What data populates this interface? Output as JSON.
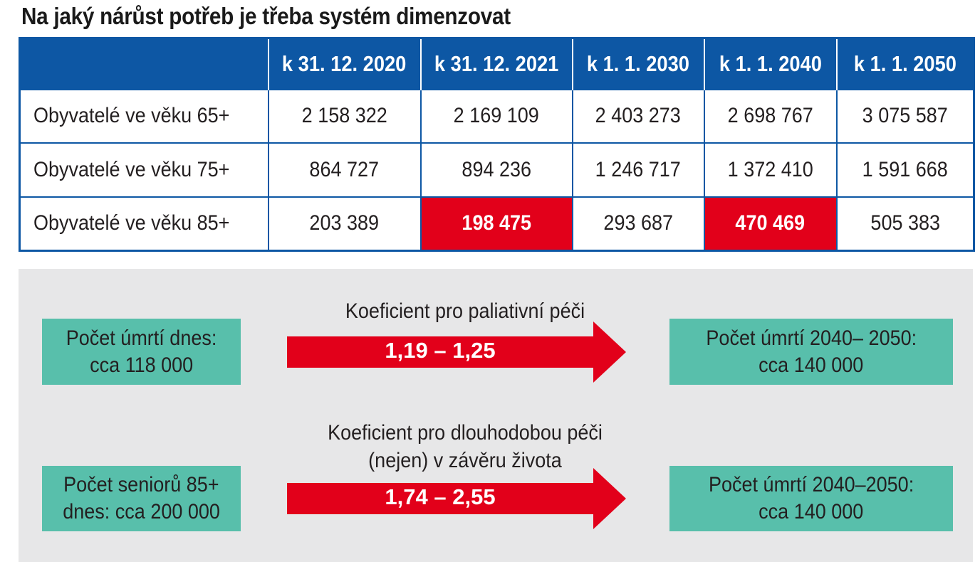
{
  "title": "Na jaký nárůst potřeb je třeba systém dimenzovat",
  "table": {
    "headers": [
      "",
      "k 31. 12. 2020",
      "k 31. 12. 2021",
      "k 1. 1. 2030",
      "k 1. 1. 2040",
      "k 1. 1. 2050"
    ],
    "rows": [
      {
        "label": "Obyvatelé ve věku 65+",
        "values": [
          "2 158 322",
          "2 169 109",
          "2 403 273",
          "2 698 767",
          "3 075 587"
        ]
      },
      {
        "label": "Obyvatelé ve věku 75+",
        "values": [
          "864 727",
          "894 236",
          "1 246 717",
          "1 372 410",
          "1 591 668"
        ]
      },
      {
        "label": "Obyvatelé ve věku 85+",
        "values": [
          "203 389",
          "198 475",
          "293 687",
          "470 469",
          "505 383"
        ]
      }
    ],
    "highlight_color": "#e2001a",
    "header_color": "#0d57a4"
  },
  "flow": {
    "row1": {
      "left_box": {
        "line1": "Počet úmrtí dnes:",
        "line2": "cca 118 000"
      },
      "coefficient_label": {
        "line1": "Koeficient pro paliativní péči"
      },
      "arrow_value": "1,19 – 1,25",
      "right_box": {
        "line1": "Počet úmrtí 2040– 2050:",
        "line2": "cca 140 000"
      }
    },
    "row2": {
      "left_box": {
        "line1": "Počet seniorů 85+",
        "line2": "dnes: cca 200 000"
      },
      "coefficient_label": {
        "line1": "Koeficient pro dlouhodobou péči",
        "line2": "(nejen) v závěru života"
      },
      "arrow_value": "1,74 – 2,55",
      "right_box": {
        "line1": "Počet úmrtí 2040–2050:",
        "line2": "cca 140 000"
      }
    },
    "box_color": "#58bfab",
    "arrow_color": "#e2001a",
    "panel_color": "#e7e7e8"
  }
}
